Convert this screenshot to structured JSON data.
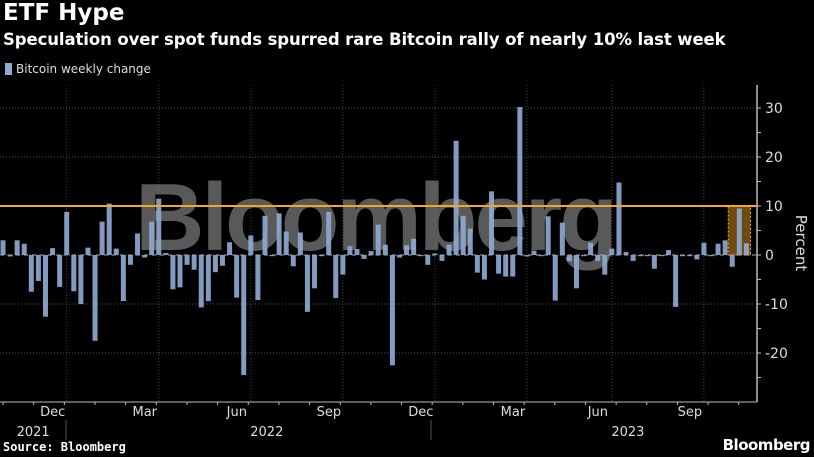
{
  "chart_data": {
    "type": "bar",
    "title": "ETF Hype",
    "subtitle": "Speculation over spot funds spurred rare Bitcoin rally of nearly 10% last week",
    "legend": [
      "Bitcoin weekly change"
    ],
    "legend_placement": "top-left",
    "ylabel": "Percent",
    "ylim": [
      -30,
      35
    ],
    "y_ticks": [
      30,
      20,
      10,
      0,
      -10,
      -20
    ],
    "grid": true,
    "reference_line": 10,
    "highlight_last_weeks": 3,
    "x_ticks": [
      {
        "week": 9,
        "label": "Dec"
      },
      {
        "week": 22,
        "label": "Mar"
      },
      {
        "week": 35,
        "label": "Jun"
      },
      {
        "week": 48,
        "label": "Sep"
      },
      {
        "week": 61,
        "label": "Dec"
      },
      {
        "week": 74,
        "label": "Mar"
      },
      {
        "week": 86,
        "label": "Jun"
      },
      {
        "week": 99,
        "label": "Sep"
      }
    ],
    "year_labels": [
      {
        "week": 2,
        "label": "2021"
      },
      {
        "week": 35,
        "label": "2022"
      },
      {
        "week": 86,
        "label": "2023"
      }
    ],
    "series": [
      {
        "name": "Bitcoin weekly change",
        "color": "#8fa8d0",
        "values": [
          3,
          -0.3,
          3,
          2.3,
          -7.5,
          -5.3,
          -12.6,
          1.4,
          -6.5,
          8.8,
          -7.4,
          -10,
          1.5,
          -17.5,
          6.8,
          10.5,
          1.3,
          -9.4,
          -2,
          4.4,
          -0.5,
          6.8,
          11.5,
          0.4,
          -7,
          -6.6,
          -2,
          -3,
          -10.7,
          -9.4,
          -3.5,
          -2.2,
          2.6,
          -8.7,
          -24.5,
          4,
          -9.2,
          8,
          -0.2,
          8.5,
          4.8,
          -2.3,
          4.6,
          -11.6,
          -6.8,
          -0.2,
          8.8,
          -8.8,
          -4,
          1.8,
          1.2,
          -0.8,
          0.8,
          6.2,
          2.1,
          -22.5,
          -0.5,
          2,
          3.3,
          0,
          -2,
          0.3,
          -1.2,
          2.1,
          23.3,
          8,
          5.4,
          -3.6,
          -5,
          13,
          -3.8,
          -4.4,
          -4.4,
          30.2,
          -0.3,
          0.9,
          -0.2,
          7.9,
          -9.3,
          6.6,
          -1.3,
          -6.8,
          -0.1,
          2.5,
          -1.2,
          -4,
          1.3,
          14.8,
          0.6,
          -1.2,
          -0.1,
          -0.2,
          -2.8,
          -0.2,
          1,
          -10.6,
          -0.2,
          -0.2,
          -0.9,
          2.5,
          -0.1,
          2.3,
          3,
          -2.4,
          9.5,
          2.4
        ]
      }
    ],
    "accent_color": "#f5a623"
  },
  "source": "Source: Bloomberg",
  "brand": "Bloomberg",
  "watermark": "Bloomberg"
}
